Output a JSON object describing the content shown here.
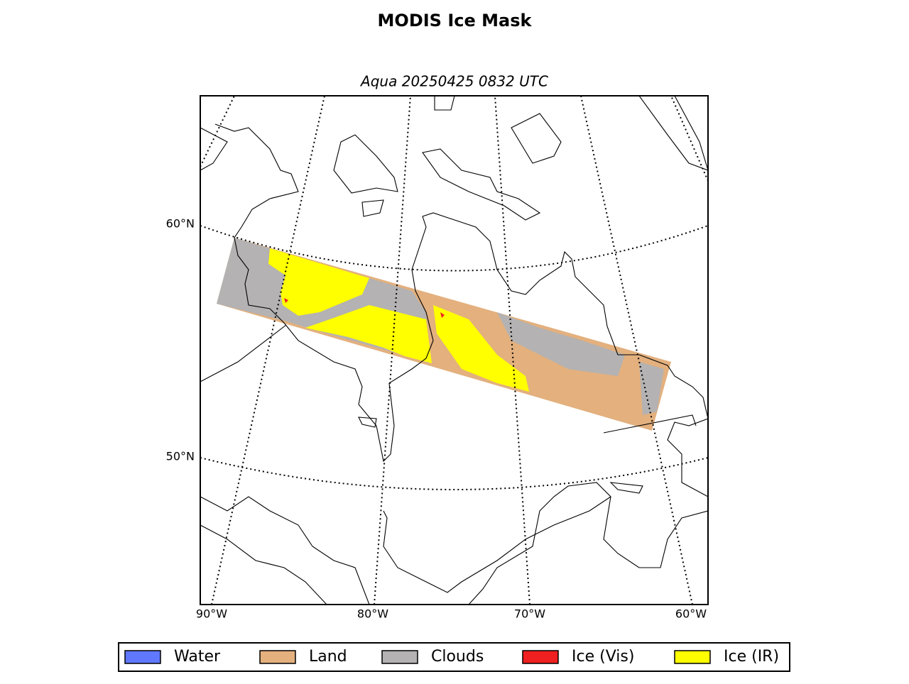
{
  "title": "MODIS Ice Mask",
  "subtitle": "Aqua 20250425 0832 UTC",
  "map": {
    "lat_labels": [
      "60°N",
      "50°N"
    ],
    "lon_labels": [
      "90°W",
      "80°W",
      "70°W",
      "60°W"
    ]
  },
  "legend": [
    {
      "name": "Water",
      "color": "#6078ff"
    },
    {
      "name": "Land",
      "color": "#e3b07e"
    },
    {
      "name": "Clouds",
      "color": "#b4b2b2"
    },
    {
      "name": "Ice (Vis)",
      "color": "#f02020"
    },
    {
      "name": "Ice (IR)",
      "color": "#ffff00"
    }
  ]
}
